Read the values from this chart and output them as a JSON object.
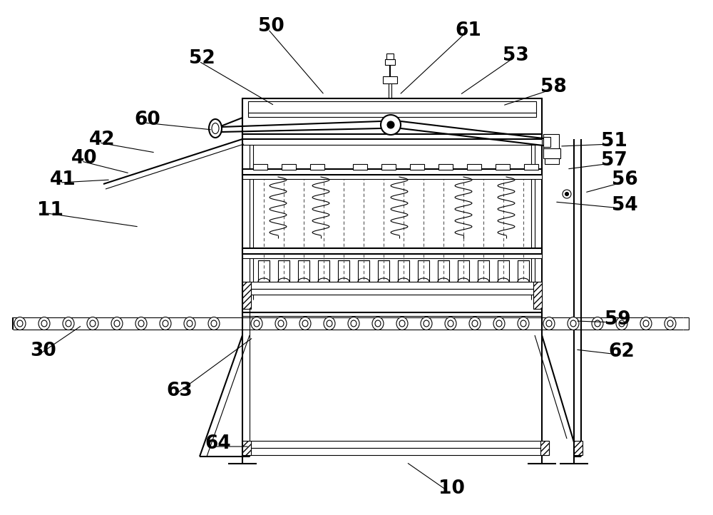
{
  "bg_color": "#ffffff",
  "fig_width": 10.0,
  "fig_height": 7.22,
  "labels": {
    "10": [
      615,
      685,
      570,
      648
    ],
    "11": [
      52,
      295,
      195,
      318
    ],
    "30": [
      42,
      492,
      115,
      456
    ],
    "40": [
      100,
      222,
      182,
      243
    ],
    "41": [
      70,
      252,
      155,
      252
    ],
    "42": [
      125,
      196,
      218,
      214
    ],
    "50": [
      362,
      37,
      455,
      133
    ],
    "51": [
      843,
      198,
      785,
      205
    ],
    "52": [
      265,
      82,
      385,
      148
    ],
    "53": [
      705,
      78,
      645,
      133
    ],
    "54": [
      858,
      288,
      778,
      283
    ],
    "56": [
      858,
      252,
      820,
      270
    ],
    "57": [
      843,
      225,
      795,
      237
    ],
    "58": [
      758,
      122,
      705,
      148
    ],
    "59": [
      848,
      448,
      807,
      450
    ],
    "60": [
      188,
      168,
      298,
      182
    ],
    "61": [
      638,
      43,
      560,
      133
    ],
    "62": [
      853,
      493,
      807,
      490
    ],
    "63": [
      233,
      548,
      355,
      473
    ],
    "64": [
      287,
      622,
      350,
      626
    ]
  }
}
